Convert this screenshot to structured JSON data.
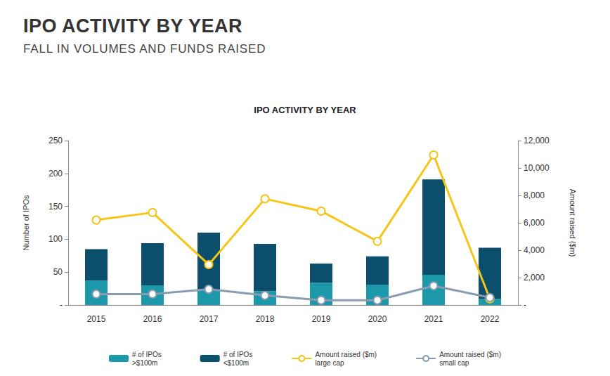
{
  "header": {
    "title": "IPO ACTIVITY BY YEAR",
    "subtitle": "FALL IN VOLUMES AND FUNDS RAISED"
  },
  "chart_data": {
    "type": "bar",
    "title": "IPO ACTIVITY BY YEAR",
    "categories": [
      "2015",
      "2016",
      "2017",
      "2018",
      "2019",
      "2020",
      "2021",
      "2022"
    ],
    "y_label": "Number of IPOs",
    "y2_label": "Amount raised ($m)",
    "ylim": [
      0,
      250
    ],
    "yticks": [
      {
        "value": 0,
        "label": "-"
      },
      50,
      100,
      150,
      200,
      250
    ],
    "y2lim": [
      0,
      12000
    ],
    "y2ticks": [
      {
        "value": 0,
        "label": "-"
      },
      {
        "value": 2000,
        "label": "2,000"
      },
      {
        "value": 4000,
        "label": "4,000"
      },
      {
        "value": 6000,
        "label": "6,000"
      },
      {
        "value": 8000,
        "label": "8,000"
      },
      {
        "value": 10000,
        "label": "10,000"
      },
      {
        "value": 12000,
        "label": "12,000"
      }
    ],
    "stacked": true,
    "grid": false,
    "legend": "bottom",
    "series": [
      {
        "name": "# of IPOs\n>$100m",
        "type": "bar",
        "color": "#1b99aa",
        "values": [
          37,
          30,
          22,
          21,
          34,
          31,
          46,
          9
        ]
      },
      {
        "name": "# of IPOs\n<$100m",
        "type": "bar",
        "color": "#0b4f6c",
        "values": [
          48,
          64,
          88,
          72,
          29,
          43,
          145,
          78
        ]
      },
      {
        "name": "Amount raised ($m)\nlarge cap",
        "type": "line",
        "axis": "y2",
        "color": "#f5c518",
        "marker": "emptyCircle",
        "values": [
          6200,
          6750,
          2950,
          7750,
          6850,
          4650,
          10950,
          450
        ]
      },
      {
        "name": "Amount raised ($m)\nsmall cap",
        "type": "line",
        "axis": "y2",
        "color": "#8a9bb0",
        "marker": "emptyCircle",
        "values": [
          800,
          800,
          1150,
          700,
          350,
          350,
          1400,
          550
        ]
      }
    ]
  }
}
